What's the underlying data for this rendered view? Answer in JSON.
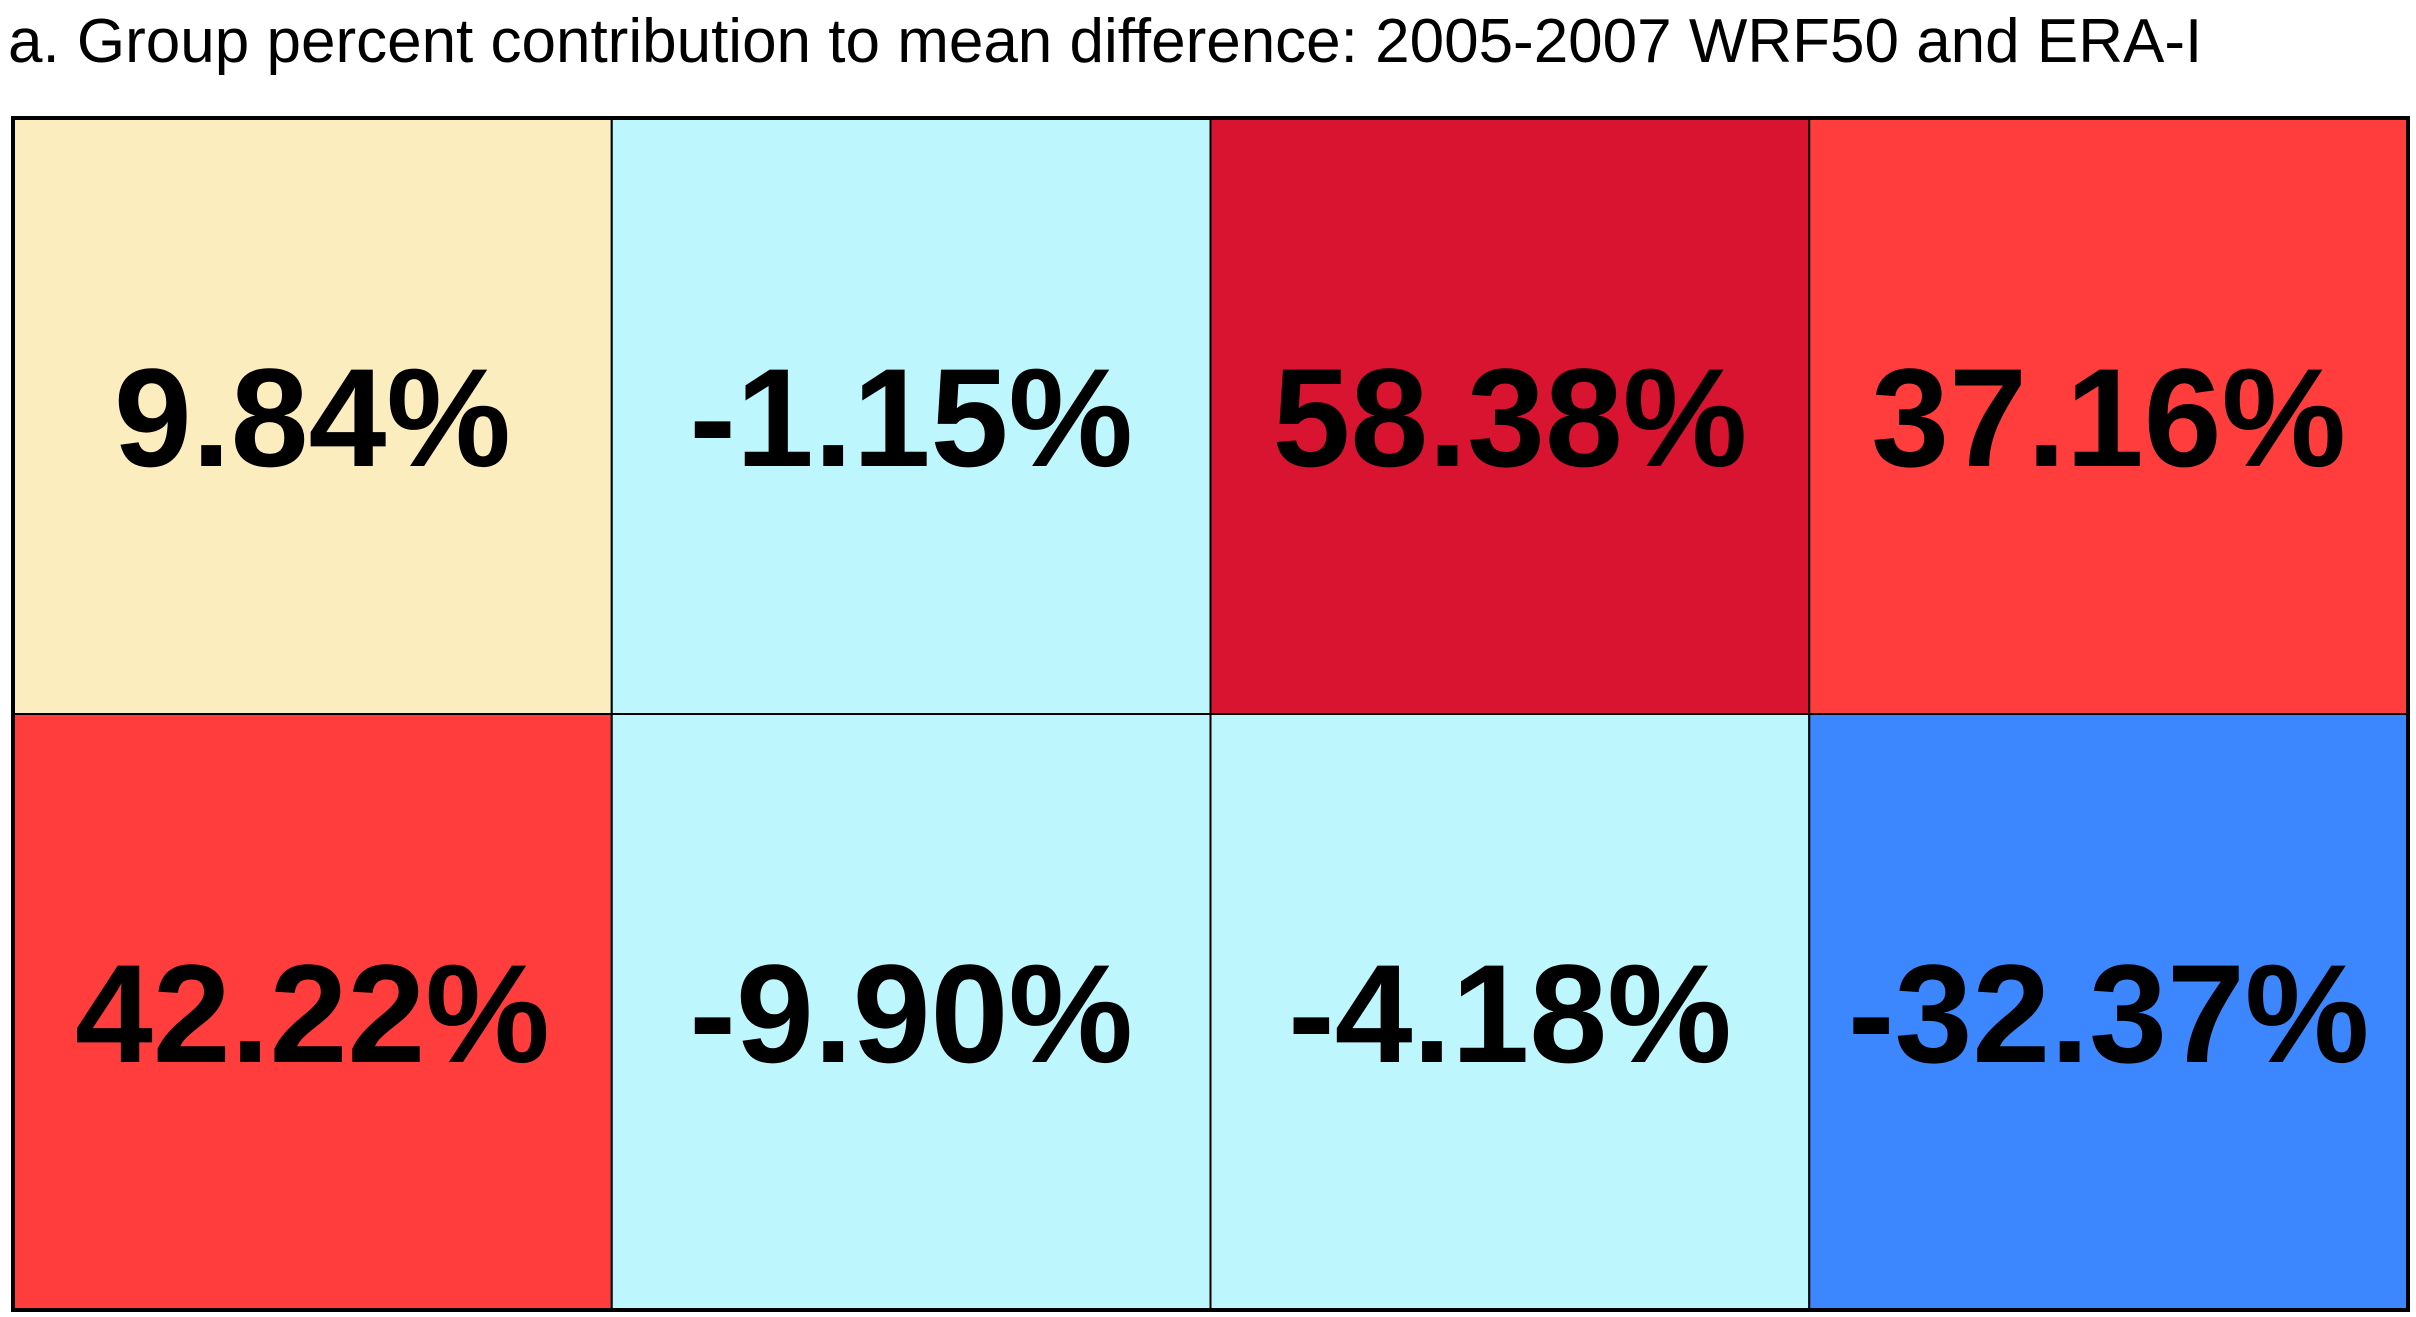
{
  "chart_data": {
    "type": "heatmap",
    "title": "a. Group percent contribution to mean difference: 2005-2007 WRF50 and ERA-I",
    "rows": 2,
    "columns": 4,
    "cells": [
      [
        {
          "value": 9.84,
          "label": "9.84%",
          "color": "#fcedbf"
        },
        {
          "value": -1.15,
          "label": "-1.15%",
          "color": "#bdf6fc"
        },
        {
          "value": 58.38,
          "label": "58.38%",
          "color": "#d81430"
        },
        {
          "value": 37.16,
          "label": "37.16%",
          "color": "#fe3d3c"
        }
      ],
      [
        {
          "value": 42.22,
          "label": "42.22%",
          "color": "#fe3d3c"
        },
        {
          "value": -9.9,
          "label": "-9.90%",
          "color": "#bdf6fc"
        },
        {
          "value": -4.18,
          "label": "-4.18%",
          "color": "#bdf6fc"
        },
        {
          "value": -32.37,
          "label": "-32.37%",
          "color": "#3c87fd"
        }
      ]
    ],
    "grid": true,
    "legend": "none"
  }
}
